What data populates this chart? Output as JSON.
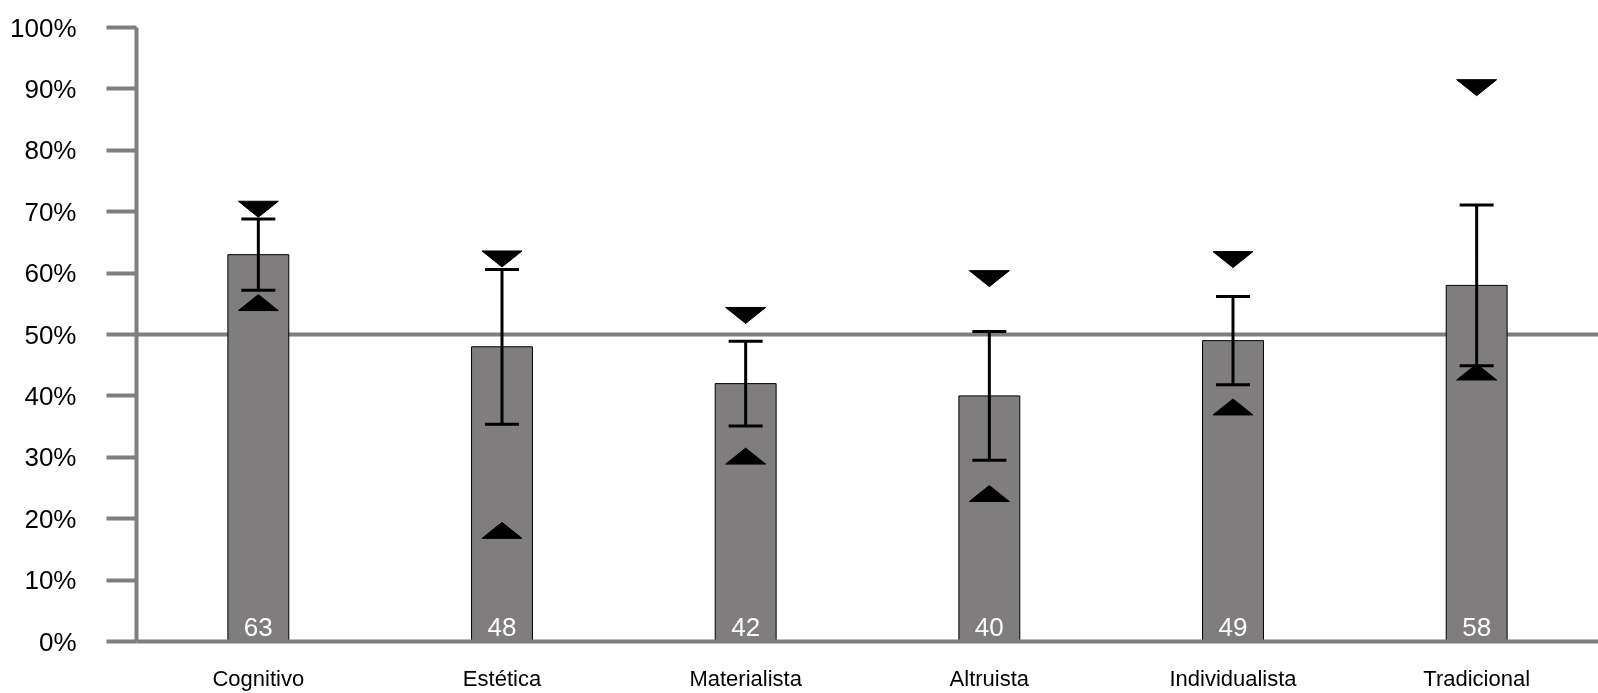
{
  "chart_data": {
    "type": "bar",
    "categories": [
      "Cognitivo",
      "Estética",
      "Materialista",
      "Altruista",
      "Individualista",
      "Tradicional"
    ],
    "series": [
      {
        "color": "#7f7d7e",
        "values": [
          63,
          48,
          42,
          40,
          49,
          58
        ],
        "value_labels": [
          "63",
          "48",
          "42",
          "40",
          "49",
          "58"
        ],
        "errors": [
          5.8,
          12.6,
          6.9,
          10.5,
          7.2,
          13.1
        ]
      },
      {
        "type": "scatter",
        "marker": "triangle",
        "color": "#000000",
        "x": [
          "Cognitivo",
          "Estética",
          "Materialista",
          "Altruista",
          "Individualista",
          "Tradicional"
        ],
        "values": [
          70.4,
          62.3,
          53.1,
          59.1,
          62.2,
          90.2
        ]
      },
      {
        "type": "scatter",
        "marker": "triangle",
        "color": "#000000",
        "x": [
          "Cognitivo",
          "Estética",
          "Materialista",
          "Altruista",
          "Individualista",
          "Tradicional"
        ],
        "values": [
          55.2,
          18.1,
          30.2,
          24.1,
          38.2,
          43.9
        ]
      }
    ],
    "ylim": [
      0,
      100
    ],
    "yticks": [
      {
        "value": 0,
        "label": "0%"
      },
      {
        "value": 10,
        "label": "10%"
      },
      {
        "value": 20,
        "label": "20%"
      },
      {
        "value": 30,
        "label": "30%"
      },
      {
        "value": 40,
        "label": "40%"
      },
      {
        "value": 50,
        "label": "50%"
      },
      {
        "value": 60,
        "label": "60%"
      },
      {
        "value": 70,
        "label": "70%"
      },
      {
        "value": 80,
        "label": "80%"
      },
      {
        "value": 90,
        "label": "90%"
      },
      {
        "value": 100,
        "label": "100%"
      }
    ],
    "ref_lines": [
      {
        "axis": "y",
        "value": 50,
        "color": "#7f7f7f"
      }
    ]
  }
}
